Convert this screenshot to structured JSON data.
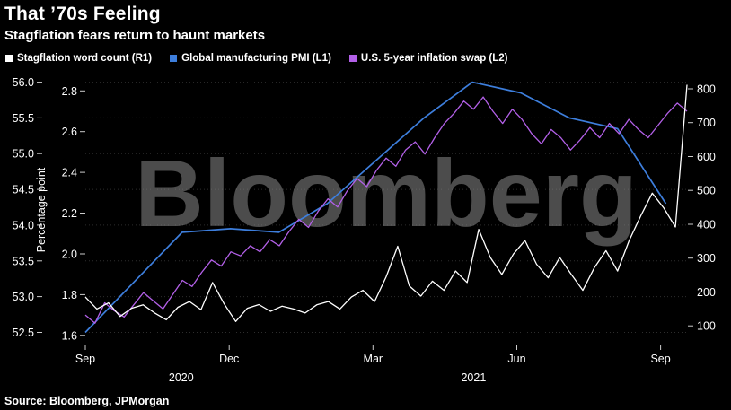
{
  "source": "Source: Bloomberg, JPMorgan",
  "watermark": "Bloomberg",
  "chart_data": {
    "type": "line",
    "title": "That ’70s Feeling",
    "subtitle": "Stagflation fears return to haunt markets",
    "months_total": 12.55,
    "year_divider_month": 4.0,
    "x_ticks": [
      {
        "label": "Sep",
        "m": 0
      },
      {
        "label": "Dec",
        "m": 3
      },
      {
        "label": "Mar",
        "m": 6
      },
      {
        "label": "Jun",
        "m": 9
      },
      {
        "label": "Sep",
        "m": 12
      }
    ],
    "year_labels": [
      {
        "label": "2020",
        "m": 2.0
      },
      {
        "label": "2021",
        "m": 8.1
      }
    ],
    "axes": {
      "L1": {
        "position": "outer-left",
        "ticks": [
          "56.0",
          "55.5",
          "55.0",
          "54.5",
          "54.0",
          "53.5",
          "53.0",
          "52.5"
        ],
        "range": [
          52.33,
          56.12
        ]
      },
      "L2": {
        "position": "inner-left",
        "label": "Percentage point",
        "ticks": [
          "2.8",
          "2.6",
          "2.4",
          "2.2",
          "2.0",
          "1.8",
          "1.6"
        ],
        "range": [
          1.555,
          2.885
        ]
      },
      "R1": {
        "position": "right",
        "ticks": [
          "800",
          "700",
          "600",
          "500",
          "400",
          "300",
          "200",
          "100"
        ],
        "range": [
          45,
          845
        ]
      }
    },
    "series": [
      {
        "name": "Stagflation word count (R1)",
        "axis": "R1",
        "color": "#ffffff",
        "x_span": [
          0,
          1
        ],
        "values": [
          185,
          150,
          168,
          128,
          152,
          162,
          138,
          118,
          155,
          172,
          148,
          228,
          165,
          113,
          152,
          163,
          143,
          158,
          150,
          138,
          162,
          172,
          150,
          185,
          205,
          172,
          245,
          335,
          218,
          188,
          232,
          205,
          262,
          228,
          385,
          302,
          252,
          312,
          352,
          282,
          242,
          302,
          252,
          205,
          272,
          322,
          262,
          352,
          425,
          492,
          448,
          392,
          812
        ]
      },
      {
        "name": "Global manufacturing PMI (L1)",
        "axis": "L1",
        "color": "#3d7edc",
        "x_span": [
          0,
          0.965
        ],
        "values": [
          52.5,
          53.2,
          53.9,
          53.95,
          53.9,
          54.3,
          54.9,
          55.5,
          56.0,
          55.85,
          55.5,
          55.35,
          54.3
        ]
      },
      {
        "name": "U.S. 5-year inflation swap (L2)",
        "axis": "L2",
        "color": "#b360e8",
        "x_span": [
          0,
          1
        ],
        "values": [
          1.7,
          1.66,
          1.76,
          1.72,
          1.69,
          1.75,
          1.81,
          1.77,
          1.73,
          1.8,
          1.87,
          1.84,
          1.91,
          1.97,
          1.94,
          2.01,
          1.99,
          2.04,
          2.01,
          2.07,
          2.04,
          2.11,
          2.17,
          2.13,
          2.21,
          2.27,
          2.23,
          2.31,
          2.37,
          2.33,
          2.41,
          2.47,
          2.43,
          2.51,
          2.55,
          2.49,
          2.57,
          2.64,
          2.69,
          2.75,
          2.71,
          2.77,
          2.7,
          2.64,
          2.71,
          2.66,
          2.59,
          2.54,
          2.61,
          2.57,
          2.51,
          2.56,
          2.62,
          2.57,
          2.64,
          2.59,
          2.66,
          2.61,
          2.57,
          2.63,
          2.69,
          2.74,
          2.7
        ]
      }
    ]
  }
}
